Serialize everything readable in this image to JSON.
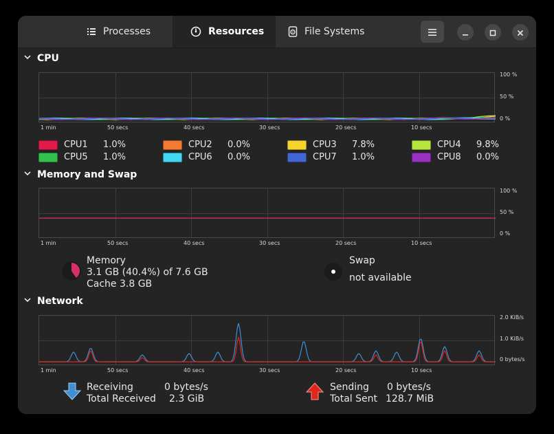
{
  "tabs": [
    {
      "label": "Processes",
      "icon": "list-icon",
      "active": false
    },
    {
      "label": "Resources",
      "icon": "gauge-icon",
      "active": true
    },
    {
      "label": "File Systems",
      "icon": "disk-icon",
      "active": false
    }
  ],
  "window_controls": {
    "menu": "menu-icon",
    "minimize": "minimize-icon",
    "maximize": "maximize-icon",
    "close": "close-icon"
  },
  "cpu": {
    "title": "CPU",
    "x_labels": [
      "1 min",
      "50 secs",
      "40 secs",
      "30 secs",
      "20 secs",
      "10 secs"
    ],
    "y_labels": [
      "100 %",
      "50 %",
      "0 %"
    ],
    "cores": [
      {
        "name": "CPU1",
        "value": "1.0%",
        "color": "#e01b4a"
      },
      {
        "name": "CPU2",
        "value": "0.0%",
        "color": "#f57a34"
      },
      {
        "name": "CPU3",
        "value": "7.8%",
        "color": "#f6d32d"
      },
      {
        "name": "CPU4",
        "value": "9.8%",
        "color": "#b5e53e"
      },
      {
        "name": "CPU5",
        "value": "1.0%",
        "color": "#33c04d"
      },
      {
        "name": "CPU6",
        "value": "0.0%",
        "color": "#41d6f2"
      },
      {
        "name": "CPU7",
        "value": "1.0%",
        "color": "#4266d6"
      },
      {
        "name": "CPU8",
        "value": "0.0%",
        "color": "#9932c2"
      }
    ]
  },
  "memory": {
    "title": "Memory and Swap",
    "x_labels": [
      "1 min",
      "50 secs",
      "40 secs",
      "30 secs",
      "20 secs",
      "10 secs"
    ],
    "y_labels": [
      "100 %",
      "50 %",
      "0 %"
    ],
    "memory_label": "Memory",
    "memory_usage": "3.1 GB (40.4%) of 7.6 GB",
    "cache": "Cache 3.8 GB",
    "memory_fraction": 0.404,
    "memory_color": "#d6306c",
    "swap_label": "Swap",
    "swap_usage": "not available"
  },
  "network": {
    "title": "Network",
    "x_labels": [
      "1 min",
      "50 secs",
      "40 secs",
      "30 secs",
      "20 secs",
      "10 secs"
    ],
    "y_labels": [
      "2.0 KiB/s",
      "1.0 KiB/s",
      "0 bytes/s"
    ],
    "receiving_label": "Receiving",
    "receiving_value": "0 bytes/s",
    "total_received_label": "Total Received",
    "total_received_value": "2.3 GiB",
    "sending_label": "Sending",
    "sending_value": "0 bytes/s",
    "total_sent_label": "Total Sent",
    "total_sent_value": "128.7 MiB",
    "receive_color": "#3f8fd2",
    "send_color": "#e0251b"
  }
}
